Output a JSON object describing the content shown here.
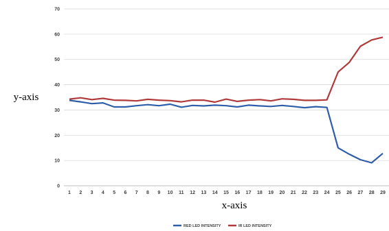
{
  "chart_data": {
    "type": "line",
    "title": "",
    "xlabel": "x-axis",
    "ylabel": "y-axis",
    "x": [
      1,
      2,
      3,
      4,
      5,
      6,
      7,
      8,
      9,
      10,
      11,
      12,
      13,
      14,
      15,
      16,
      17,
      18,
      19,
      20,
      21,
      22,
      23,
      24,
      25,
      26,
      27,
      28,
      29
    ],
    "ylim": [
      0,
      70
    ],
    "yticks": [
      0,
      10,
      20,
      30,
      40,
      50,
      60,
      70
    ],
    "grid": true,
    "legend_position": "bottom",
    "series": [
      {
        "name": "RED LED INTENSITY",
        "color": "#2e5ea8",
        "values": [
          33.8,
          33.2,
          32.5,
          32.8,
          31.2,
          31.2,
          31.7,
          32.1,
          31.7,
          32.3,
          31.1,
          31.8,
          31.6,
          31.9,
          31.7,
          31.2,
          31.9,
          31.6,
          31.4,
          31.8,
          31.4,
          30.9,
          31.3,
          31.0,
          15.0,
          12.5,
          10.3,
          9.1,
          12.8
        ]
      },
      {
        "name": "IR LED INTENSITY",
        "color": "#b03a3a",
        "values": [
          34.3,
          34.8,
          34.1,
          34.6,
          33.9,
          33.8,
          33.6,
          34.2,
          33.9,
          33.7,
          33.2,
          33.9,
          33.9,
          33.1,
          34.3,
          33.4,
          33.9,
          34.1,
          33.6,
          34.4,
          34.2,
          33.8,
          33.8,
          34.0,
          45.0,
          48.8,
          55.2,
          57.7,
          58.8
        ]
      }
    ]
  }
}
